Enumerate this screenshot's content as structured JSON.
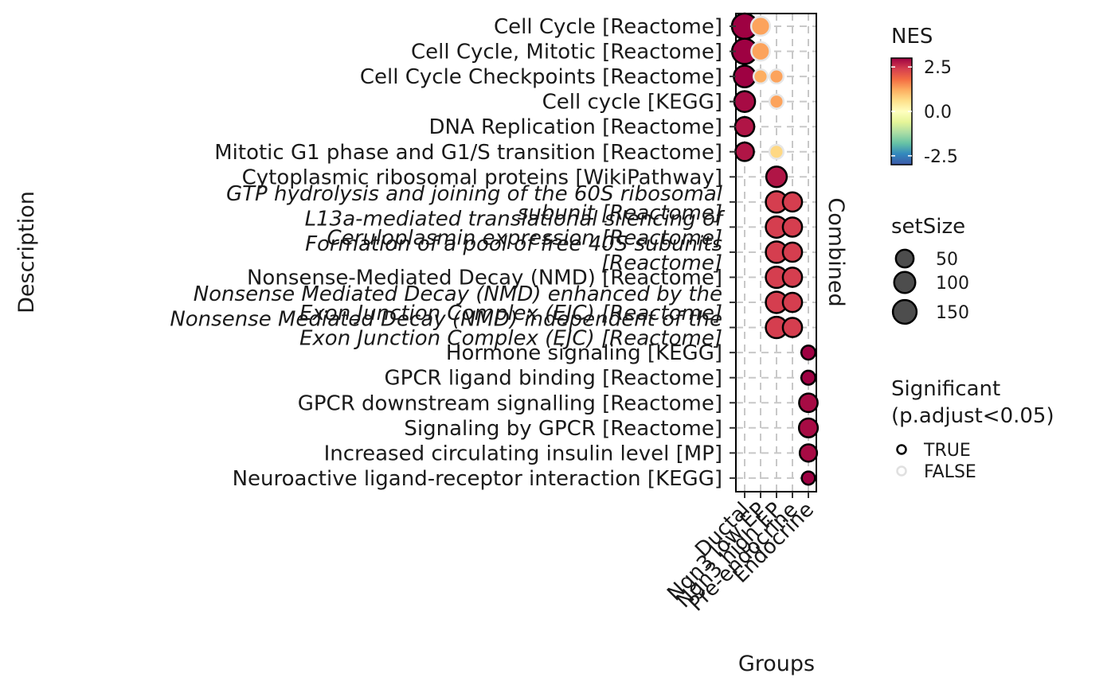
{
  "chart_data": {
    "type": "scatter",
    "xlabel": "Groups",
    "ylabel": "Description",
    "facet_label": "Combined",
    "grid": true,
    "legend_position": "right",
    "groups": [
      "Ductal",
      "Ngn3 low EP",
      "Ngn3 high EP",
      "Pre-endocrine",
      "Endocrine"
    ],
    "terms": [
      {
        "lines": [
          "Cell Cycle [Reactome]"
        ],
        "italic": false
      },
      {
        "lines": [
          "Cell Cycle, Mitotic [Reactome]"
        ],
        "italic": false
      },
      {
        "lines": [
          "Cell Cycle Checkpoints [Reactome]"
        ],
        "italic": false
      },
      {
        "lines": [
          "Cell cycle [KEGG]"
        ],
        "italic": false
      },
      {
        "lines": [
          "DNA Replication [Reactome]"
        ],
        "italic": false
      },
      {
        "lines": [
          "Mitotic G1 phase and G1/S transition [Reactome]"
        ],
        "italic": false
      },
      {
        "lines": [
          "Cytoplasmic ribosomal proteins [WikiPathway]"
        ],
        "italic": false
      },
      {
        "lines": [
          "GTP hydrolysis and joining of the 60S ribosomal",
          "subunit [Reactome]"
        ],
        "italic": true
      },
      {
        "lines": [
          "L13a-mediated translational silencing of",
          "Ceruloplasmin expression [Reactome]"
        ],
        "italic": true
      },
      {
        "lines": [
          "Formation of a pool of free 40S subunits",
          "[Reactome]"
        ],
        "italic": true
      },
      {
        "lines": [
          "Nonsense-Mediated Decay (NMD) [Reactome]"
        ],
        "italic": false
      },
      {
        "lines": [
          "Nonsense Mediated Decay (NMD) enhanced by the",
          "Exon Junction Complex (EJC) [Reactome]"
        ],
        "italic": true
      },
      {
        "lines": [
          "Nonsense Mediated Decay (NMD) independent of the",
          "Exon Junction Complex (EJC) [Reactome]"
        ],
        "italic": true
      },
      {
        "lines": [
          "Hormone signaling [KEGG]"
        ],
        "italic": false
      },
      {
        "lines": [
          "GPCR ligand binding [Reactome]"
        ],
        "italic": false
      },
      {
        "lines": [
          "GPCR downstream signalling [Reactome]"
        ],
        "italic": false
      },
      {
        "lines": [
          "Signaling by GPCR [Reactome]"
        ],
        "italic": false
      },
      {
        "lines": [
          "Increased circulating insulin level [MP]"
        ],
        "italic": false
      },
      {
        "lines": [
          "Neuroactive ligand-receptor interaction [KEGG]"
        ],
        "italic": false
      }
    ],
    "points": [
      {
        "term": 0,
        "group": 0,
        "nes": 3.0,
        "setSize": 190,
        "significant": true
      },
      {
        "term": 0,
        "group": 1,
        "nes": 1.3,
        "setSize": 65,
        "significant": false
      },
      {
        "term": 1,
        "group": 0,
        "nes": 3.0,
        "setSize": 185,
        "significant": true
      },
      {
        "term": 1,
        "group": 1,
        "nes": 1.3,
        "setSize": 60,
        "significant": false
      },
      {
        "term": 2,
        "group": 0,
        "nes": 3.0,
        "setSize": 110,
        "significant": true
      },
      {
        "term": 2,
        "group": 1,
        "nes": 1.2,
        "setSize": 15,
        "significant": false
      },
      {
        "term": 2,
        "group": 2,
        "nes": 1.3,
        "setSize": 15,
        "significant": false
      },
      {
        "term": 3,
        "group": 0,
        "nes": 2.9,
        "setSize": 95,
        "significant": true
      },
      {
        "term": 3,
        "group": 2,
        "nes": 1.3,
        "setSize": 15,
        "significant": false
      },
      {
        "term": 4,
        "group": 0,
        "nes": 2.8,
        "setSize": 70,
        "significant": true
      },
      {
        "term": 5,
        "group": 0,
        "nes": 2.8,
        "setSize": 60,
        "significant": true
      },
      {
        "term": 5,
        "group": 2,
        "nes": 0.7,
        "setSize": 15,
        "significant": false
      },
      {
        "term": 6,
        "group": 2,
        "nes": 2.8,
        "setSize": 90,
        "significant": true
      },
      {
        "term": 7,
        "group": 2,
        "nes": 2.4,
        "setSize": 105,
        "significant": true
      },
      {
        "term": 7,
        "group": 3,
        "nes": 2.4,
        "setSize": 70,
        "significant": true
      },
      {
        "term": 8,
        "group": 2,
        "nes": 2.4,
        "setSize": 105,
        "significant": true
      },
      {
        "term": 8,
        "group": 3,
        "nes": 2.4,
        "setSize": 70,
        "significant": true
      },
      {
        "term": 9,
        "group": 2,
        "nes": 2.4,
        "setSize": 105,
        "significant": true
      },
      {
        "term": 9,
        "group": 3,
        "nes": 2.4,
        "setSize": 70,
        "significant": true
      },
      {
        "term": 10,
        "group": 2,
        "nes": 2.4,
        "setSize": 105,
        "significant": true
      },
      {
        "term": 10,
        "group": 3,
        "nes": 2.4,
        "setSize": 70,
        "significant": true
      },
      {
        "term": 11,
        "group": 2,
        "nes": 2.4,
        "setSize": 105,
        "significant": true
      },
      {
        "term": 11,
        "group": 3,
        "nes": 2.4,
        "setSize": 70,
        "significant": true
      },
      {
        "term": 12,
        "group": 2,
        "nes": 2.4,
        "setSize": 105,
        "significant": true
      },
      {
        "term": 12,
        "group": 3,
        "nes": 2.4,
        "setSize": 70,
        "significant": true
      },
      {
        "term": 13,
        "group": 4,
        "nes": 3.0,
        "setSize": 15,
        "significant": true
      },
      {
        "term": 14,
        "group": 4,
        "nes": 3.0,
        "setSize": 15,
        "significant": true
      },
      {
        "term": 15,
        "group": 4,
        "nes": 2.9,
        "setSize": 60,
        "significant": true
      },
      {
        "term": 16,
        "group": 4,
        "nes": 2.9,
        "setSize": 65,
        "significant": true
      },
      {
        "term": 17,
        "group": 4,
        "nes": 2.9,
        "setSize": 45,
        "significant": true
      },
      {
        "term": 18,
        "group": 4,
        "nes": 3.0,
        "setSize": 10,
        "significant": true
      }
    ],
    "legend_nes": {
      "title": "NES",
      "ticks": [
        {
          "value": 2.5,
          "label": "2.5"
        },
        {
          "value": 0.0,
          "label": "0.0"
        },
        {
          "value": -2.5,
          "label": "-2.5"
        }
      ],
      "range": [
        -3.0,
        3.0
      ],
      "colors": [
        "#3b58a8",
        "#3288bd",
        "#66c2a5",
        "#abdda4",
        "#e6f598",
        "#ffffbf",
        "#fee08b",
        "#fdae61",
        "#f46d43",
        "#d53e4f",
        "#9e0142"
      ]
    },
    "legend_size": {
      "title": "setSize",
      "entries": [
        {
          "value": 50,
          "label": "50"
        },
        {
          "value": 100,
          "label": "100"
        },
        {
          "value": 150,
          "label": "150"
        }
      ]
    },
    "legend_sig": {
      "title_lines": [
        "Significant",
        "(p.adjust<0.05)"
      ],
      "entries": [
        {
          "value": true,
          "label": "TRUE",
          "stroke": "#000000"
        },
        {
          "value": false,
          "label": "FALSE",
          "stroke": "#e0e0e0"
        }
      ]
    }
  }
}
